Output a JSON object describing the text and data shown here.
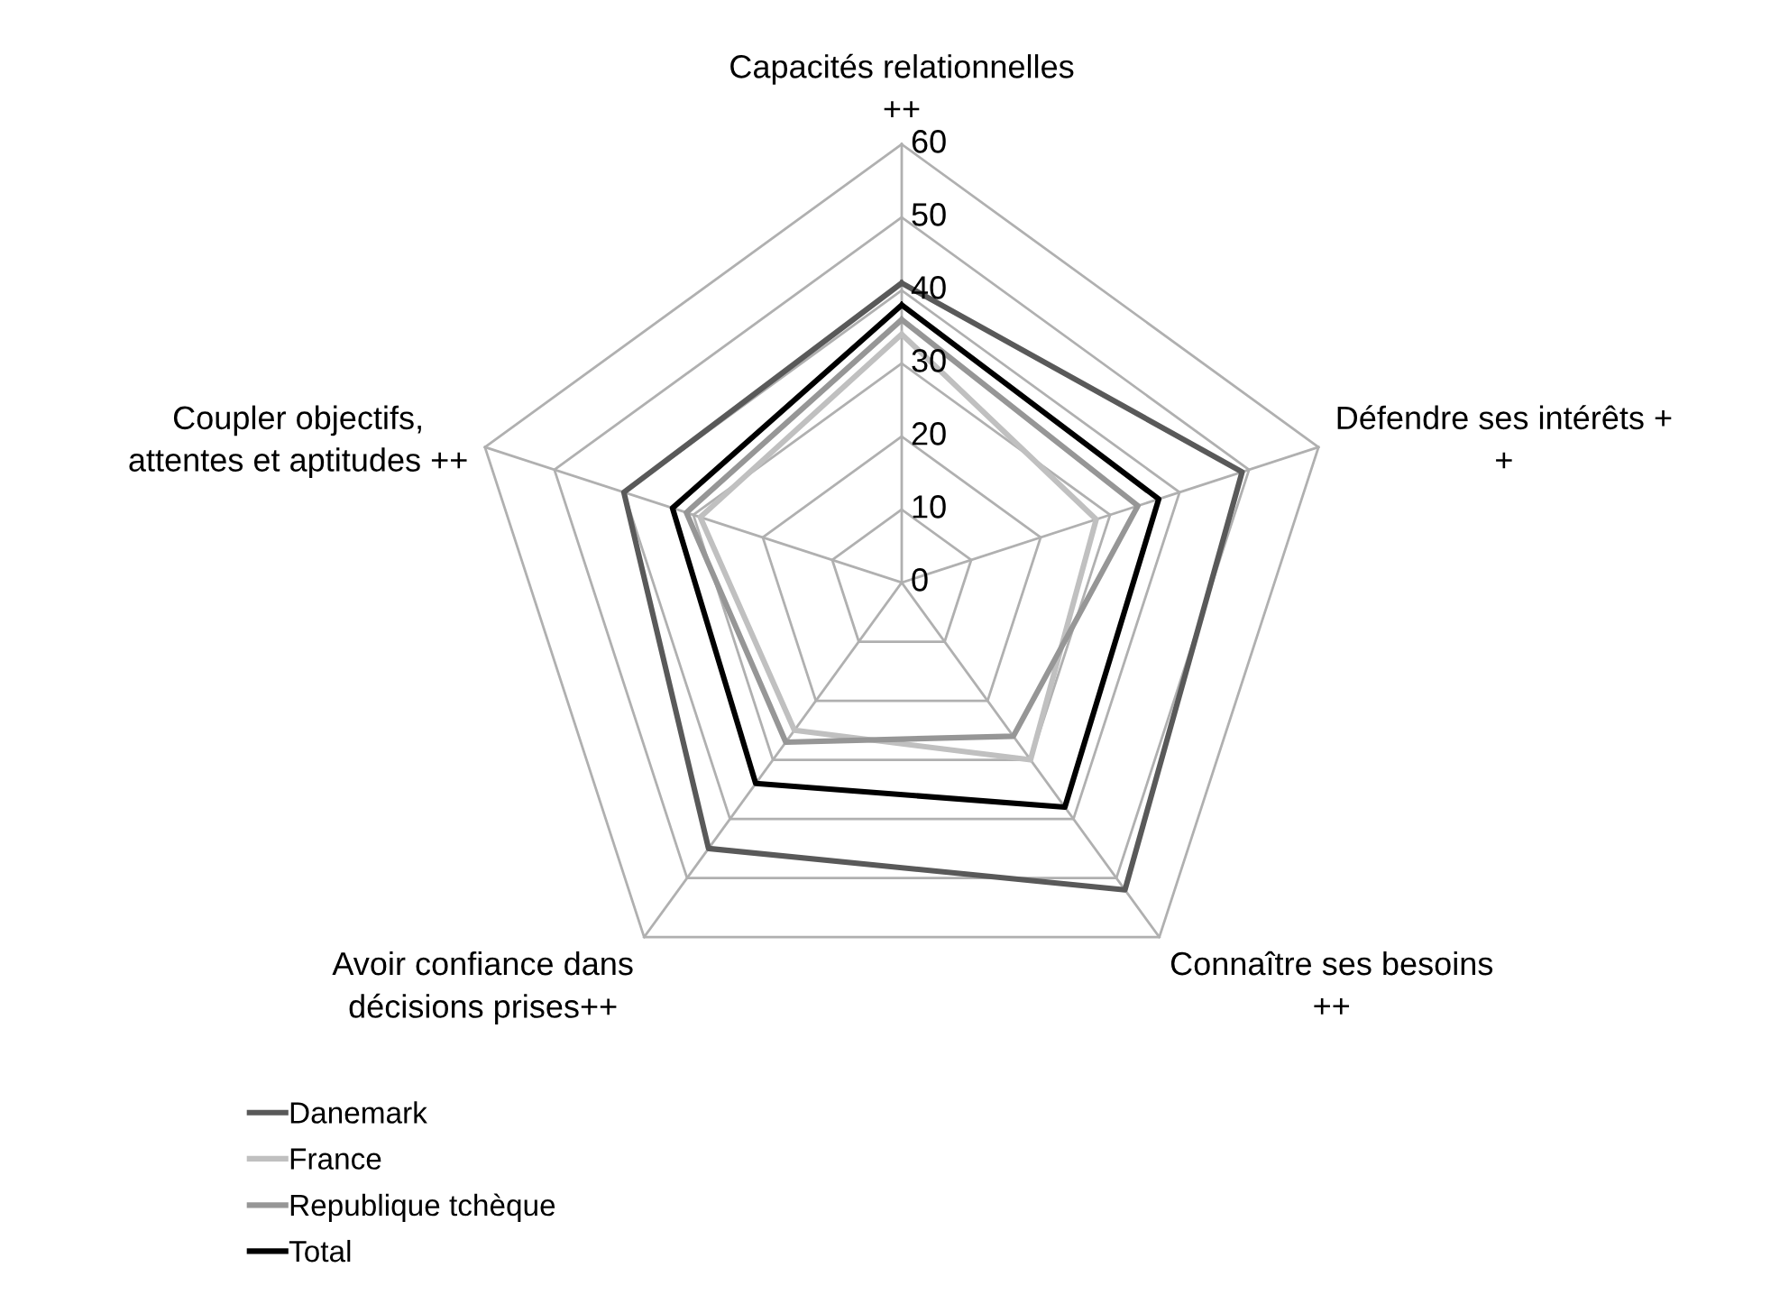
{
  "chart_data": {
    "type": "radar",
    "categories": [
      "Capacités relationnelles\n++",
      "Défendre ses intérêts +\n+",
      "Connaître ses besoins\n++",
      "Avoir confiance dans\ndécisions prises++",
      "Coupler objectifs,\nattentes et aptitudes ++"
    ],
    "series": [
      {
        "name": "Danemark",
        "color": "#595959",
        "values": [
          41,
          49,
          52,
          45,
          40
        ]
      },
      {
        "name": "France",
        "color": "#c0c0c0",
        "values": [
          34,
          28,
          30,
          25,
          29
        ]
      },
      {
        "name": "Republique tchèque",
        "color": "#969696",
        "values": [
          36,
          34,
          26,
          27,
          31
        ]
      },
      {
        "name": "Total",
        "color": "#000000",
        "values": [
          38,
          37,
          38,
          34,
          33
        ]
      }
    ],
    "ylim": [
      0,
      60
    ],
    "yticks": [
      0,
      10,
      20,
      30,
      40,
      50,
      60
    ],
    "grid": true,
    "legend": "bottom left"
  }
}
